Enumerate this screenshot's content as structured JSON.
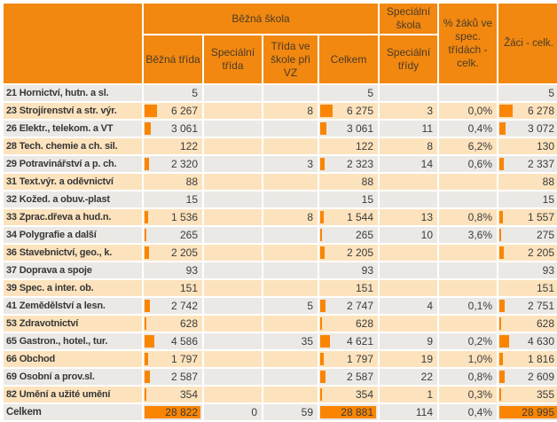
{
  "table": {
    "header": {
      "bezna_skola": "Běžná škola",
      "specialni_skola": "Speciální škola",
      "pct_zaku": "% žáků ve spec. třídách - celk.",
      "zaci_celk": "Žáci - celk.",
      "sub": [
        "Běžná třída",
        "Speciální třída",
        "Třída ve škole při VZ",
        "Celkem",
        "Speciální třídy"
      ]
    },
    "bar_columns": [
      0,
      3,
      6
    ],
    "rows": [
      {
        "label": "21 Hornictví, hutn. a sl.",
        "values": [
          "5",
          "",
          "",
          "5",
          "",
          "",
          "5"
        ]
      },
      {
        "label": "23 Strojírenství a str. výr.",
        "values": [
          "6 267",
          "",
          "8",
          "6 275",
          "3",
          "0,0%",
          "6 278"
        ]
      },
      {
        "label": "26 Elektr., telekom. a VT",
        "values": [
          "3 061",
          "",
          "",
          "3 061",
          "11",
          "0,4%",
          "3 072"
        ]
      },
      {
        "label": "28 Tech. chemie a ch. sil.",
        "values": [
          "122",
          "",
          "",
          "122",
          "8",
          "6,2%",
          "130"
        ]
      },
      {
        "label": "29 Potravinářství a p. ch.",
        "values": [
          "2 320",
          "",
          "3",
          "2 323",
          "14",
          "0,6%",
          "2 337"
        ]
      },
      {
        "label": "31 Text.výr. a oděvnictví",
        "values": [
          "88",
          "",
          "",
          "88",
          "",
          "",
          "88"
        ]
      },
      {
        "label": "32 Kožed. a obuv.-plast",
        "values": [
          "15",
          "",
          "",
          "15",
          "",
          "",
          "15"
        ]
      },
      {
        "label": "33 Zprac.dřeva a hud.n.",
        "values": [
          "1 536",
          "",
          "8",
          "1 544",
          "13",
          "0,8%",
          "1 557"
        ]
      },
      {
        "label": "34 Polygrafie a další",
        "values": [
          "265",
          "",
          "",
          "265",
          "10",
          "3,6%",
          "275"
        ]
      },
      {
        "label": "36 Stavebnictví, geo., k.",
        "values": [
          "2 205",
          "",
          "",
          "2 205",
          "",
          "",
          "2 205"
        ]
      },
      {
        "label": "37 Doprava a spoje",
        "values": [
          "93",
          "",
          "",
          "93",
          "",
          "",
          "93"
        ]
      },
      {
        "label": "39 Spec. a inter. ob.",
        "values": [
          "151",
          "",
          "",
          "151",
          "",
          "",
          "151"
        ]
      },
      {
        "label": "41 Zemědělství a lesn.",
        "values": [
          "2 742",
          "",
          "5",
          "2 747",
          "4",
          "0,1%",
          "2 751"
        ]
      },
      {
        "label": "53 Zdravotnictví",
        "values": [
          "628",
          "",
          "",
          "628",
          "",
          "",
          "628"
        ]
      },
      {
        "label": "65 Gastron., hotel., tur.",
        "values": [
          "4 586",
          "",
          "35",
          "4 621",
          "9",
          "0,2%",
          "4 630"
        ]
      },
      {
        "label": "66 Obchod",
        "values": [
          "1 797",
          "",
          "",
          "1 797",
          "19",
          "1,0%",
          "1 816"
        ]
      },
      {
        "label": "69 Osobní a prov.sl.",
        "values": [
          "2 587",
          "",
          "",
          "2 587",
          "22",
          "0,8%",
          "2 609"
        ]
      },
      {
        "label": "82 Umění a užité umění",
        "values": [
          "354",
          "",
          "",
          "354",
          "1",
          "0,3%",
          "355"
        ]
      }
    ],
    "total": {
      "label": "Celkem",
      "values": [
        "28 822",
        "0",
        "59",
        "28 881",
        "114",
        "0,4%",
        "28 995"
      ]
    }
  },
  "colors": {
    "header_bg": "#f28810",
    "header_text": "#4a3b26",
    "bar": "#fa8502",
    "row_gray": "#ebe9e5",
    "row_cream": "#fce3bd",
    "grid": "#ffffff",
    "text": "#3b3b3b"
  }
}
